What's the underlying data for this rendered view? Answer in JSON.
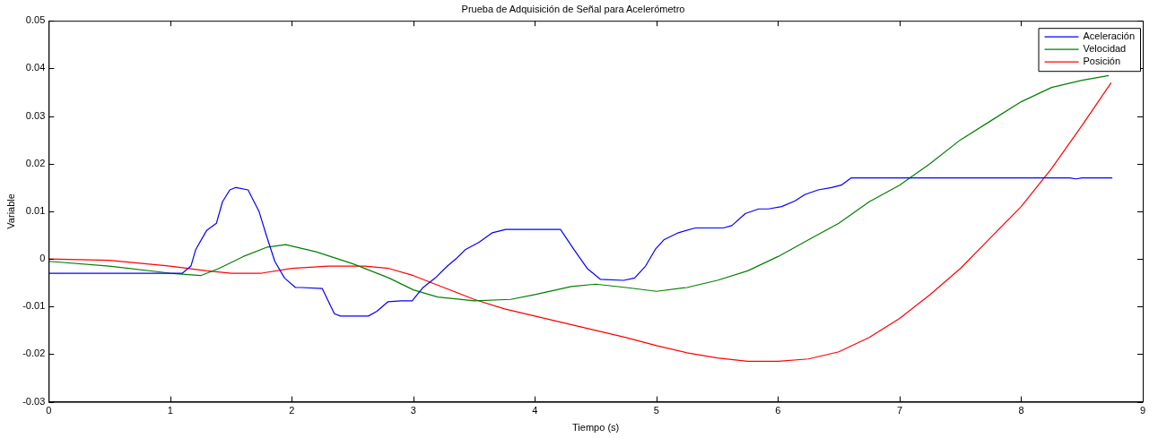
{
  "chart_data": {
    "type": "line",
    "title": "Prueba de Adquisición de Señal para Acelerómetro",
    "xlabel": "Tiempo (s)",
    "ylabel": "Variable",
    "xlim": [
      0,
      9
    ],
    "xticks": [
      0,
      1,
      2,
      3,
      4,
      5,
      6,
      7,
      8,
      9
    ],
    "ylim": [
      -0.03,
      0.05
    ],
    "yticks": [
      -0.03,
      -0.02,
      -0.01,
      0,
      0.01,
      0.02,
      0.03,
      0.04,
      0.05
    ],
    "grid": false,
    "legend": "top right",
    "marker": "none",
    "line_style": "solid",
    "series": [
      {
        "name": "Aceleración",
        "color": "#0000ff",
        "x": [
          0,
          1.1,
          1.17,
          1.21,
          1.3,
          1.38,
          1.43,
          1.49,
          1.54,
          1.64,
          1.73,
          1.79,
          1.86,
          1.94,
          2.03,
          2.08,
          2.25,
          2.35,
          2.4,
          2.63,
          2.7,
          2.79,
          2.9,
          2.99,
          3.08,
          3.18,
          3.28,
          3.35,
          3.43,
          3.54,
          3.65,
          3.76,
          3.98,
          4.21,
          4.32,
          4.43,
          4.54,
          4.73,
          4.82,
          4.91,
          4.99,
          5.06,
          5.18,
          5.32,
          5.55,
          5.62,
          5.73,
          5.84,
          5.92,
          6.03,
          6.14,
          6.22,
          6.33,
          6.44,
          6.52,
          6.6,
          8.4,
          8.45,
          8.5,
          8.75
        ],
        "values": [
          -0.003,
          -0.003,
          -0.0015,
          0.002,
          0.006,
          0.0075,
          0.012,
          0.0145,
          0.015,
          0.0145,
          0.01,
          0.005,
          -0.0005,
          -0.004,
          -0.006,
          -0.006,
          -0.0062,
          -0.0115,
          -0.012,
          -0.012,
          -0.011,
          -0.009,
          -0.0088,
          -0.0088,
          -0.006,
          -0.004,
          -0.0015,
          0,
          0.002,
          0.0035,
          0.0055,
          0.0062,
          0.0062,
          0.0062,
          0.002,
          -0.002,
          -0.0043,
          -0.0045,
          -0.004,
          -0.0015,
          0.002,
          0.004,
          0.0055,
          0.0065,
          0.0065,
          0.007,
          0.0095,
          0.0105,
          0.0105,
          0.011,
          0.0122,
          0.0135,
          0.0145,
          0.015,
          0.0155,
          0.017,
          0.017,
          0.0168,
          0.017,
          0.017
        ]
      },
      {
        "name": "Velocidad",
        "color": "#008000",
        "x": [
          0,
          0.5,
          1,
          1.25,
          1.4,
          1.6,
          1.8,
          1.95,
          2.2,
          2.5,
          2.8,
          3,
          3.2,
          3.5,
          3.8,
          4,
          4.3,
          4.5,
          4.75,
          5,
          5.25,
          5.5,
          5.75,
          6,
          6.25,
          6.5,
          6.75,
          7,
          7.25,
          7.5,
          7.75,
          8,
          8.25,
          8.5,
          8.72
        ],
        "values": [
          -0.0005,
          -0.0015,
          -0.003,
          -0.0035,
          -0.002,
          0.0005,
          0.0025,
          0.003,
          0.0015,
          -0.001,
          -0.004,
          -0.0065,
          -0.008,
          -0.0088,
          -0.0085,
          -0.0075,
          -0.0058,
          -0.0053,
          -0.006,
          -0.0068,
          -0.006,
          -0.0045,
          -0.0025,
          0.0005,
          0.004,
          0.0075,
          0.012,
          0.0155,
          0.02,
          0.025,
          0.029,
          0.033,
          0.036,
          0.0375,
          0.0385
        ]
      },
      {
        "name": "Posición",
        "color": "#ff0000",
        "x": [
          0,
          0.5,
          1,
          1.3,
          1.5,
          1.75,
          2,
          2.3,
          2.6,
          2.8,
          3,
          3.25,
          3.5,
          3.75,
          4,
          4.25,
          4.5,
          4.75,
          5,
          5.25,
          5.5,
          5.75,
          6,
          6.25,
          6.5,
          6.75,
          7,
          7.25,
          7.5,
          7.75,
          8,
          8.25,
          8.5,
          8.74
        ],
        "values": [
          0,
          -0.0003,
          -0.0015,
          -0.0025,
          -0.003,
          -0.003,
          -0.002,
          -0.0015,
          -0.0015,
          -0.002,
          -0.0035,
          -0.006,
          -0.0085,
          -0.0105,
          -0.012,
          -0.0135,
          -0.015,
          -0.0165,
          -0.0182,
          -0.0197,
          -0.0208,
          -0.0215,
          -0.0215,
          -0.021,
          -0.0195,
          -0.0165,
          -0.0125,
          -0.0075,
          -0.002,
          0.0045,
          0.011,
          0.019,
          0.028,
          0.037
        ]
      }
    ]
  }
}
